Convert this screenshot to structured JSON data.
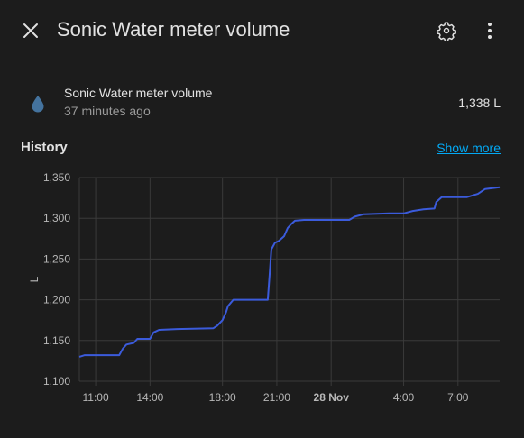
{
  "header": {
    "title": "Sonic Water meter volume",
    "close_icon": "close-icon",
    "settings_icon": "gear-icon",
    "menu_icon": "more-vertical-icon"
  },
  "entity": {
    "icon": "water-drop-icon",
    "icon_color": "#44739e",
    "name": "Sonic Water meter volume",
    "last_changed": "37 minutes ago",
    "state": "1,338 L"
  },
  "history": {
    "title": "History",
    "show_more": "Show more"
  },
  "colors": {
    "background": "#1c1c1c",
    "line": "#3b5bdb",
    "link": "#03a9f4",
    "grid": "#3a3a3a"
  },
  "chart_data": {
    "type": "line",
    "ylabel": "L",
    "ylim": [
      1100,
      1350
    ],
    "y_ticks": [
      "1,100",
      "1,150",
      "1,200",
      "1,250",
      "1,300",
      "1,350"
    ],
    "y_tick_values": [
      1100,
      1150,
      1200,
      1250,
      1300,
      1350
    ],
    "x_ticks": [
      {
        "label": "11:00",
        "t": 11,
        "bold": false
      },
      {
        "label": "14:00",
        "t": 14,
        "bold": false
      },
      {
        "label": "18:00",
        "t": 18,
        "bold": false
      },
      {
        "label": "21:00",
        "t": 21,
        "bold": false
      },
      {
        "label": "28 Nov",
        "t": 24,
        "bold": true
      },
      {
        "label": "4:00",
        "t": 28,
        "bold": false
      },
      {
        "label": "7:00",
        "t": 31,
        "bold": false
      }
    ],
    "xlim": [
      10.1,
      33.3
    ],
    "series": [
      {
        "x": [
          10.1,
          10.4,
          12.3,
          12.5,
          12.7,
          13.1,
          13.3,
          14.0,
          14.2,
          14.5,
          15.5,
          17.5,
          17.7,
          18.0,
          18.2,
          18.3,
          18.6,
          19.4,
          20.5,
          20.6,
          20.7,
          20.9,
          21.1,
          21.4,
          21.6,
          21.8,
          22.0,
          22.5,
          25.0,
          25.3,
          25.8,
          27.2,
          27.9,
          28.0,
          28.5,
          29.1,
          29.7,
          29.8,
          30.1,
          31.5,
          32.1,
          32.5,
          33.3
        ],
        "y": [
          1130,
          1132,
          1132,
          1140,
          1145,
          1147,
          1152,
          1152,
          1160,
          1163,
          1164,
          1165,
          1168,
          1175,
          1185,
          1192,
          1200,
          1200,
          1200,
          1230,
          1262,
          1270,
          1272,
          1278,
          1288,
          1293,
          1297,
          1298,
          1298,
          1302,
          1305,
          1306,
          1306,
          1306,
          1309,
          1311,
          1312,
          1320,
          1326,
          1326,
          1330,
          1336,
          1338
        ]
      }
    ]
  }
}
